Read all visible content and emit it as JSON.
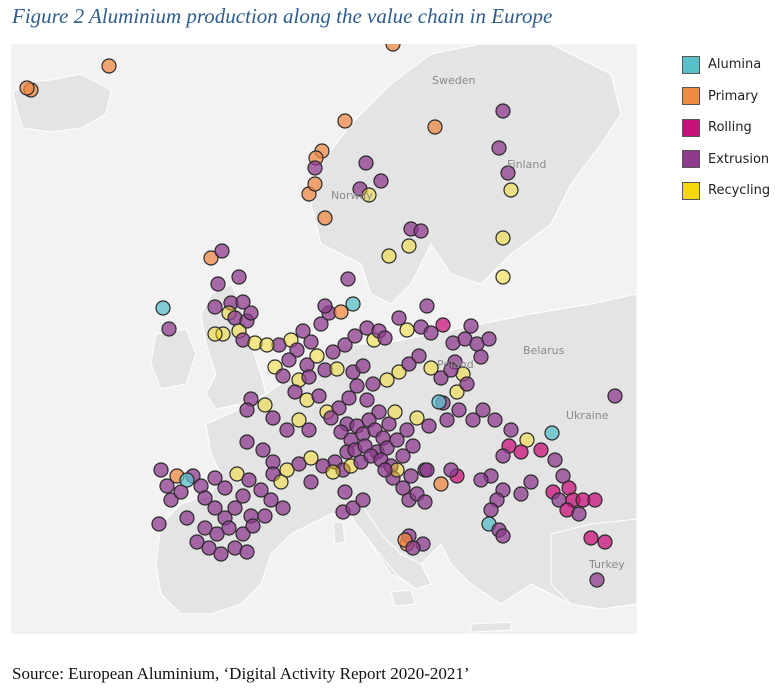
{
  "figure": {
    "title": "Figure 2   Aluminium production along the value chain in Europe",
    "source": "Source: European Aluminium, ‘Digital Activity Report 2020-2021’"
  },
  "legend": [
    {
      "label": "Alumina",
      "color": "#5bbfc9"
    },
    {
      "label": "Primary",
      "color": "#ef8a45"
    },
    {
      "label": "Rolling",
      "color": "#c8127a"
    },
    {
      "label": "Extrusion",
      "color": "#8e3b8e"
    },
    {
      "label": "Recycling",
      "color": "#f5d80d"
    }
  ],
  "map_labels": {
    "sweden": "Sweden",
    "finland": "Finland",
    "norway": "Norway",
    "belarus": "Belarus",
    "poland": "Poland",
    "ukraine": "Ukraine",
    "turkey": "Turkey"
  }
}
